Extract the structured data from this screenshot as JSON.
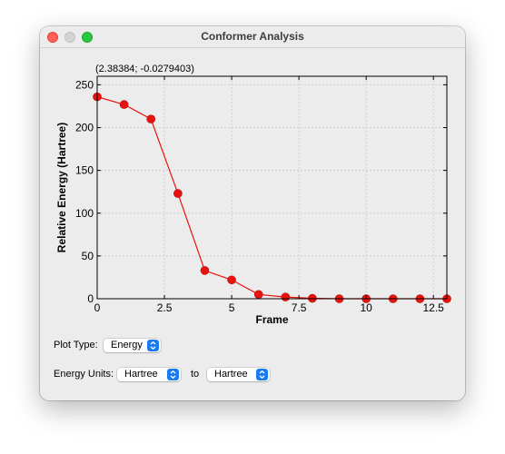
{
  "window": {
    "title": "Conformer Analysis"
  },
  "plot": {
    "coordinate_readout": "(2.38384; -0.0279403)"
  },
  "controls": {
    "plot_type_label": "Plot Type:",
    "plot_type_value": "Energy",
    "energy_units_label": "Energy Units:",
    "from_unit_value": "Hartree",
    "to_label": "to",
    "to_unit_value": "Hartree"
  },
  "colors": {
    "series": "#e8130f",
    "grid": "#cfcfcf"
  },
  "chart_data": {
    "type": "line",
    "title": "",
    "xlabel": "Frame",
    "ylabel": "Relative Energy (Hartree)",
    "xlim": [
      0,
      13
    ],
    "ylim": [
      0,
      260
    ],
    "x_ticks": [
      0,
      2.5,
      5,
      7.5,
      10,
      12.5
    ],
    "x_tick_labels": [
      "0",
      "2.5",
      "5",
      "7.5",
      "10",
      "12.5"
    ],
    "y_ticks": [
      0,
      50,
      100,
      150,
      200,
      250
    ],
    "y_tick_labels": [
      "0",
      "50",
      "100",
      "150",
      "200",
      "250"
    ],
    "grid": true,
    "series": [
      {
        "x": [
          0,
          1,
          2,
          3,
          4,
          5,
          6,
          7,
          8,
          9,
          10,
          11,
          12,
          13
        ],
        "values": [
          236,
          227,
          210,
          123,
          33,
          22,
          5,
          2,
          0.5,
          0,
          0,
          0,
          0,
          0
        ]
      }
    ]
  }
}
